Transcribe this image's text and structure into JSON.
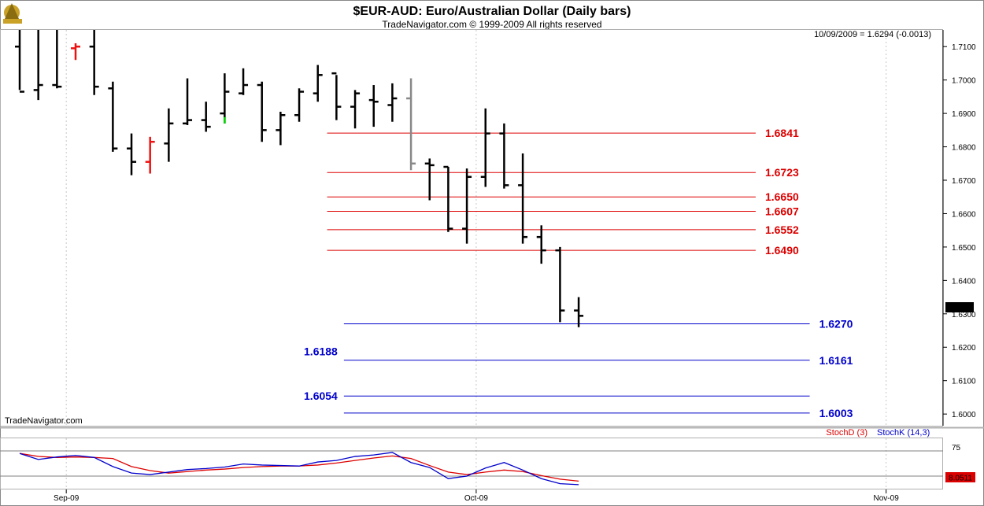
{
  "header": {
    "title": "$EUR-AUD:  Euro/Australian Dollar  (Daily bars)",
    "subtitle": "TradeNavigator.com © 1999-2009 All rights reserved"
  },
  "quote": {
    "text": "10/09/2009 = 1.6294 (-0.0013)",
    "last_price_tag": "1.6294",
    "oscillator_tag": "8.0511"
  },
  "watermark": "TradeNavigator.com",
  "colors": {
    "bar": "#000000",
    "bar_up_highlight": "#00dd00",
    "bar_down_highlight": "#ee1111",
    "bar_gray": "#888888",
    "resistance": "#dd0000",
    "support": "#0000cc",
    "stoch_d": "#dd0000",
    "stoch_k": "#0000cc"
  },
  "chart_data": {
    "type": "ohlc",
    "ylim": [
      1.5965,
      1.715
    ],
    "y_ticks": [
      "1.7100",
      "1.7000",
      "1.6900",
      "1.6800",
      "1.6700",
      "1.6600",
      "1.6500",
      "1.6400",
      "1.6300",
      "1.6200",
      "1.6100",
      "1.6000"
    ],
    "x_ticks": [
      {
        "label": "Sep-09",
        "slot": 2.5
      },
      {
        "label": "Oct-09",
        "slot": 24.5
      },
      {
        "label": "Nov-09",
        "slot": 46.5
      }
    ],
    "bars": [
      {
        "slot": 0,
        "o": 1.71,
        "h": 1.715,
        "l": 1.697,
        "c": 1.6965,
        "color": "bar"
      },
      {
        "slot": 1,
        "o": 1.697,
        "h": 1.715,
        "l": 1.694,
        "c": 1.6985,
        "color": "bar"
      },
      {
        "slot": 2,
        "o": 1.6985,
        "h": 1.715,
        "l": 1.6975,
        "c": 1.698,
        "color": "bar"
      },
      {
        "slot": 3,
        "o": 1.7095,
        "h": 1.711,
        "l": 1.706,
        "c": 1.71,
        "color": "bar_down_highlight"
      },
      {
        "slot": 4,
        "o": 1.71,
        "h": 1.715,
        "l": 1.6955,
        "c": 1.698,
        "color": "bar"
      },
      {
        "slot": 5,
        "o": 1.6975,
        "h": 1.6995,
        "l": 1.6785,
        "c": 1.6795,
        "color": "bar"
      },
      {
        "slot": 6,
        "o": 1.6795,
        "h": 1.684,
        "l": 1.6715,
        "c": 1.6755,
        "color": "bar"
      },
      {
        "slot": 7,
        "o": 1.6755,
        "h": 1.683,
        "l": 1.672,
        "c": 1.6815,
        "color": "bar_down_highlight"
      },
      {
        "slot": 8,
        "o": 1.681,
        "h": 1.6915,
        "l": 1.6755,
        "c": 1.687,
        "color": "bar"
      },
      {
        "slot": 9,
        "o": 1.687,
        "h": 1.7005,
        "l": 1.6865,
        "c": 1.688,
        "color": "bar"
      },
      {
        "slot": 10,
        "o": 1.688,
        "h": 1.6935,
        "l": 1.6845,
        "c": 1.686,
        "color": "bar"
      },
      {
        "slot": 11,
        "o": 1.69,
        "h": 1.702,
        "l": 1.687,
        "c": 1.6965,
        "color": "bar",
        "low_tail": "bar_up_highlight"
      },
      {
        "slot": 12,
        "o": 1.696,
        "h": 1.7035,
        "l": 1.6955,
        "c": 1.6985,
        "color": "bar"
      },
      {
        "slot": 13,
        "o": 1.6985,
        "h": 1.6995,
        "l": 1.6815,
        "c": 1.685,
        "color": "bar"
      },
      {
        "slot": 14,
        "o": 1.685,
        "h": 1.6905,
        "l": 1.6805,
        "c": 1.6895,
        "color": "bar"
      },
      {
        "slot": 15,
        "o": 1.6895,
        "h": 1.6975,
        "l": 1.6875,
        "c": 1.6965,
        "color": "bar"
      },
      {
        "slot": 16,
        "o": 1.696,
        "h": 1.7045,
        "l": 1.6935,
        "c": 1.7015,
        "color": "bar"
      },
      {
        "slot": 17,
        "o": 1.702,
        "h": 1.7015,
        "l": 1.688,
        "c": 1.692,
        "color": "bar"
      },
      {
        "slot": 18,
        "o": 1.692,
        "h": 1.697,
        "l": 1.6855,
        "c": 1.696,
        "color": "bar"
      },
      {
        "slot": 19,
        "o": 1.694,
        "h": 1.6985,
        "l": 1.686,
        "c": 1.6935,
        "color": "bar"
      },
      {
        "slot": 20,
        "o": 1.6925,
        "h": 1.699,
        "l": 1.6875,
        "c": 1.6945,
        "color": "bar"
      },
      {
        "slot": 21,
        "o": 1.6945,
        "h": 1.7005,
        "l": 1.673,
        "c": 1.675,
        "color": "bar_gray"
      },
      {
        "slot": 22,
        "o": 1.675,
        "h": 1.6765,
        "l": 1.664,
        "c": 1.6745,
        "color": "bar"
      },
      {
        "slot": 23,
        "o": 1.674,
        "h": 1.674,
        "l": 1.6545,
        "c": 1.6555,
        "color": "bar"
      },
      {
        "slot": 24,
        "o": 1.6555,
        "h": 1.6735,
        "l": 1.651,
        "c": 1.671,
        "color": "bar"
      },
      {
        "slot": 25,
        "o": 1.671,
        "h": 1.6915,
        "l": 1.668,
        "c": 1.684,
        "color": "bar"
      },
      {
        "slot": 26,
        "o": 1.684,
        "h": 1.687,
        "l": 1.6675,
        "c": 1.6685,
        "color": "bar"
      },
      {
        "slot": 27,
        "o": 1.6685,
        "h": 1.678,
        "l": 1.651,
        "c": 1.653,
        "color": "bar"
      },
      {
        "slot": 28,
        "o": 1.653,
        "h": 1.6565,
        "l": 1.645,
        "c": 1.649,
        "color": "bar"
      },
      {
        "slot": 29,
        "o": 1.649,
        "h": 1.65,
        "l": 1.6275,
        "c": 1.631,
        "color": "bar"
      },
      {
        "slot": 30,
        "o": 1.631,
        "h": 1.635,
        "l": 1.626,
        "c": 1.6294,
        "color": "bar"
      }
    ],
    "levels": [
      {
        "value": 1.6841,
        "label": "1.6841",
        "kind": "resistance",
        "x0": 16.5,
        "x1": 39.5,
        "label_side": "right"
      },
      {
        "value": 1.6723,
        "label": "1.6723",
        "kind": "resistance",
        "x0": 16.5,
        "x1": 39.5,
        "label_side": "right"
      },
      {
        "value": 1.665,
        "label": "1.6650",
        "kind": "resistance",
        "x0": 16.5,
        "x1": 39.5,
        "label_side": "right"
      },
      {
        "value": 1.6607,
        "label": "1.6607",
        "kind": "resistance",
        "x0": 16.5,
        "x1": 39.5,
        "label_side": "right"
      },
      {
        "value": 1.6552,
        "label": "1.6552",
        "kind": "resistance",
        "x0": 16.5,
        "x1": 39.5,
        "label_side": "right"
      },
      {
        "value": 1.649,
        "label": "1.6490",
        "kind": "resistance",
        "x0": 16.5,
        "x1": 39.5,
        "label_side": "right"
      },
      {
        "value": 1.627,
        "label": "1.6270",
        "kind": "support",
        "x0": 17.4,
        "x1": 42.4,
        "label_side": "right"
      },
      {
        "value": 1.6161,
        "label": "1.6161",
        "kind": "support",
        "x0": 17.4,
        "x1": 42.4,
        "label_side": "right"
      },
      {
        "value": 1.6054,
        "label": "1.6054",
        "kind": "support",
        "x0": 17.4,
        "x1": 42.4,
        "label_side": "none"
      },
      {
        "value": 1.6003,
        "label": "1.6003",
        "kind": "support",
        "x0": 17.4,
        "x1": 42.4,
        "label_side": "right"
      }
    ],
    "left_labels": [
      {
        "value": 1.6188,
        "label": "1.6188",
        "kind": "support"
      },
      {
        "value": 1.6054,
        "label": "1.6054",
        "kind": "support"
      }
    ],
    "oscillator": {
      "legend": [
        "StochD (3)",
        "StochK (14,3)"
      ],
      "tick_label": "75",
      "ylim": [
        0,
        100
      ],
      "ref_levels": [
        75,
        25
      ],
      "stoch_d": [
        70,
        64,
        62,
        63,
        62,
        60,
        44,
        36,
        31,
        34,
        37,
        39,
        42,
        44,
        45,
        45,
        47,
        51,
        56,
        61,
        65,
        60,
        46,
        33,
        28,
        33,
        37,
        34,
        26,
        19,
        15
      ],
      "stoch_k": [
        70,
        58,
        63,
        66,
        62,
        44,
        31,
        28,
        33,
        38,
        40,
        43,
        49,
        47,
        46,
        45,
        53,
        56,
        64,
        67,
        72,
        52,
        42,
        20,
        25,
        41,
        52,
        37,
        20,
        10,
        8
      ]
    }
  }
}
